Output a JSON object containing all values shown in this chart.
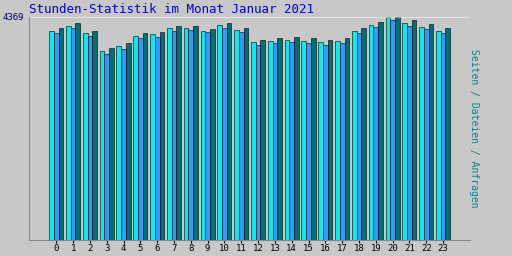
{
  "title": "Stunden-Statistik im Monat Januar 2021",
  "title_color": "#0000dd",
  "title_fontsize": 9,
  "ylabel": "Seiten / Dateien / Anfragen",
  "ylabel_color": "#008888",
  "ylabel_fontsize": 7,
  "ytick_label": "4369",
  "ytick_color": "#000066",
  "background_color": "#c8c8c8",
  "plot_bg_color": "#c8c8c8",
  "hours": [
    0,
    1,
    2,
    3,
    4,
    5,
    6,
    7,
    8,
    9,
    10,
    11,
    12,
    13,
    14,
    15,
    16,
    17,
    18,
    19,
    20,
    21,
    22,
    23
  ],
  "series_pages": [
    4100,
    4200,
    4050,
    3700,
    3800,
    4000,
    4030,
    4150,
    4150,
    4100,
    4220,
    4120,
    3870,
    3900,
    3920,
    3900,
    3870,
    3900,
    4100,
    4220,
    4369,
    4250,
    4180,
    4100
  ],
  "series_files": [
    4050,
    4150,
    4000,
    3650,
    3750,
    3960,
    3980,
    4100,
    4120,
    4070,
    4150,
    4070,
    3820,
    3850,
    3870,
    3850,
    3820,
    3850,
    4060,
    4170,
    4300,
    4200,
    4130,
    4060
  ],
  "series_requests": [
    4150,
    4250,
    4100,
    3760,
    3860,
    4060,
    4080,
    4200,
    4200,
    4140,
    4260,
    4160,
    3920,
    3950,
    3970,
    3950,
    3920,
    3950,
    4150,
    4270,
    4369,
    4300,
    4230,
    4150
  ],
  "color_pages": "#00eeee",
  "color_files": "#3399ff",
  "color_requests": "#007070",
  "bar_edge": "#000000",
  "bar_width": 0.28,
  "ylim_min": 0,
  "ylim_max": 4369,
  "ytick_val": 4369,
  "figsize": [
    5.12,
    2.56
  ],
  "dpi": 100
}
